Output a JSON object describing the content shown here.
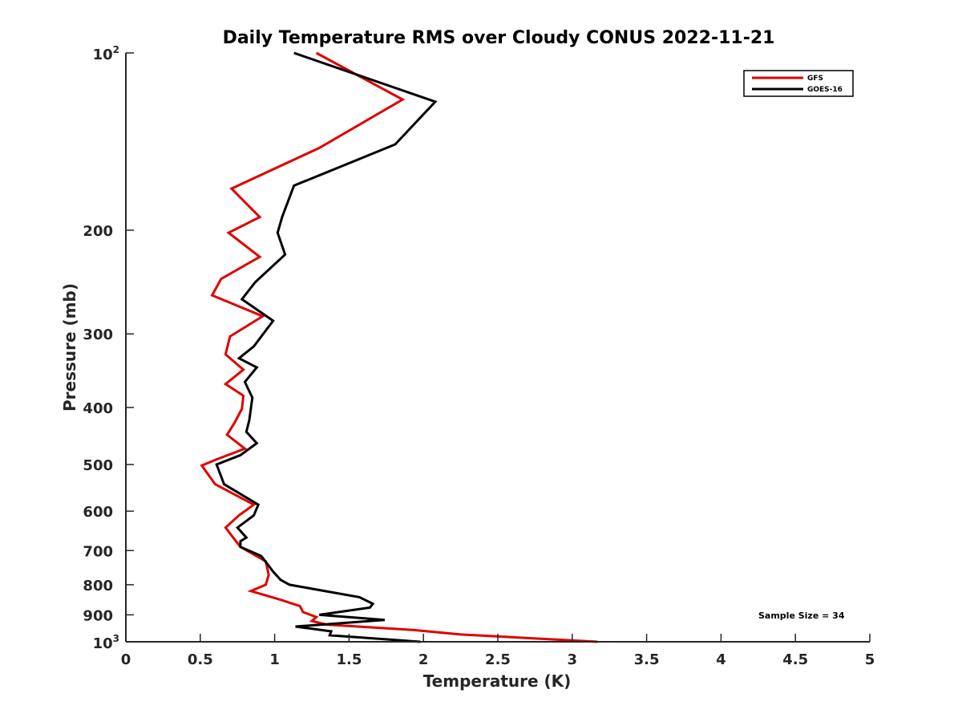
{
  "chart_data": {
    "type": "line",
    "title": "Daily Temperature RMS over Cloudy CONUS 2022-11-21",
    "xlabel": "Temperature (K)",
    "ylabel": "Pressure (mb)",
    "xlim": [
      0,
      5
    ],
    "ylim": [
      100,
      1000
    ],
    "y_scale": "log",
    "y_reversed": true,
    "grid": false,
    "legend_position": "top-right",
    "x_ticks": [
      0,
      0.5,
      1,
      1.5,
      2,
      2.5,
      3,
      3.5,
      4,
      4.5,
      5
    ],
    "x_tick_labels": [
      "0",
      "0.5",
      "1",
      "1.5",
      "2",
      "2.5",
      "3",
      "3.5",
      "4",
      "4.5",
      "5"
    ],
    "y_ticks": [
      {
        "value": 100,
        "base": "10",
        "exp": "2",
        "text": ""
      },
      {
        "value": 200,
        "base": "",
        "exp": "",
        "text": "200"
      },
      {
        "value": 300,
        "base": "",
        "exp": "",
        "text": "300"
      },
      {
        "value": 400,
        "base": "",
        "exp": "",
        "text": "400"
      },
      {
        "value": 500,
        "base": "",
        "exp": "",
        "text": "500"
      },
      {
        "value": 600,
        "base": "",
        "exp": "",
        "text": "600"
      },
      {
        "value": 700,
        "base": "",
        "exp": "",
        "text": "700"
      },
      {
        "value": 800,
        "base": "",
        "exp": "",
        "text": "800"
      },
      {
        "value": 900,
        "base": "",
        "exp": "",
        "text": "900"
      },
      {
        "value": 1000,
        "base": "10",
        "exp": "3",
        "text": ""
      }
    ],
    "annotation": "Sample Size = 34",
    "series": [
      {
        "name": "GFS",
        "color": "#e00000",
        "points": [
          [
            1.28,
            100
          ],
          [
            1.86,
            120
          ],
          [
            1.3,
            145
          ],
          [
            0.71,
            170
          ],
          [
            0.9,
            190
          ],
          [
            0.69,
            202
          ],
          [
            0.9,
            222
          ],
          [
            0.64,
            242
          ],
          [
            0.58,
            258
          ],
          [
            0.92,
            280
          ],
          [
            0.7,
            303
          ],
          [
            0.67,
            325
          ],
          [
            0.79,
            345
          ],
          [
            0.67,
            365
          ],
          [
            0.79,
            382
          ],
          [
            0.78,
            402
          ],
          [
            0.73,
            425
          ],
          [
            0.68,
            445
          ],
          [
            0.8,
            470
          ],
          [
            0.61,
            490
          ],
          [
            0.51,
            502
          ],
          [
            0.6,
            540
          ],
          [
            0.86,
            585
          ],
          [
            0.76,
            610
          ],
          [
            0.67,
            640
          ],
          [
            0.71,
            660
          ],
          [
            0.77,
            690
          ],
          [
            0.94,
            730
          ],
          [
            0.96,
            770
          ],
          [
            0.94,
            800
          ],
          [
            0.84,
            820
          ],
          [
            1.05,
            850
          ],
          [
            1.17,
            870
          ],
          [
            1.19,
            890
          ],
          [
            1.28,
            908
          ],
          [
            1.25,
            922
          ],
          [
            1.35,
            935
          ],
          [
            1.93,
            955
          ],
          [
            2.25,
            972
          ],
          [
            3.17,
            1000
          ]
        ]
      },
      {
        "name": "GOES-16",
        "color": "#000000",
        "points": [
          [
            1.13,
            100
          ],
          [
            2.08,
            121
          ],
          [
            1.81,
            143
          ],
          [
            1.13,
            168
          ],
          [
            1.05,
            190
          ],
          [
            1.02,
            202
          ],
          [
            1.07,
            220
          ],
          [
            0.87,
            245
          ],
          [
            0.78,
            262
          ],
          [
            0.99,
            285
          ],
          [
            0.86,
            315
          ],
          [
            0.76,
            330
          ],
          [
            0.88,
            342
          ],
          [
            0.8,
            362
          ],
          [
            0.85,
            385
          ],
          [
            0.83,
            420
          ],
          [
            0.81,
            440
          ],
          [
            0.88,
            460
          ],
          [
            0.77,
            482
          ],
          [
            0.61,
            500
          ],
          [
            0.66,
            540
          ],
          [
            0.89,
            585
          ],
          [
            0.86,
            610
          ],
          [
            0.75,
            640
          ],
          [
            0.81,
            665
          ],
          [
            0.77,
            675
          ],
          [
            0.77,
            690
          ],
          [
            0.91,
            715
          ],
          [
            0.99,
            760
          ],
          [
            1.04,
            785
          ],
          [
            1.1,
            800
          ],
          [
            1.57,
            840
          ],
          [
            1.66,
            862
          ],
          [
            1.64,
            875
          ],
          [
            1.3,
            900
          ],
          [
            1.74,
            918
          ],
          [
            1.14,
            942
          ],
          [
            1.38,
            960
          ],
          [
            1.37,
            975
          ],
          [
            1.98,
            1000
          ]
        ]
      }
    ]
  }
}
